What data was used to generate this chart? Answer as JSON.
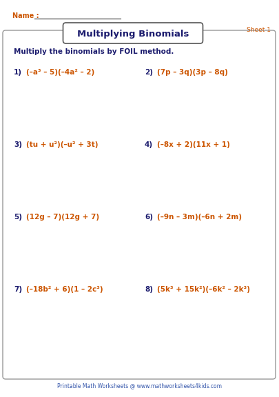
{
  "title": "Multiplying Binomials",
  "sheet": "Sheet 1",
  "name_label": "Name :",
  "instruction": "Multiply the binomials by FOIL method.",
  "problems": [
    {
      "num": "1)",
      "expr": "(–a³ – 5)(–4a² – 2)",
      "col": 0,
      "row": 0
    },
    {
      "num": "2)",
      "expr": "(7p – 3q)(3p – 8q)",
      "col": 1,
      "row": 0
    },
    {
      "num": "3)",
      "expr": "(tu + u²)(–u² + 3t)",
      "col": 0,
      "row": 1
    },
    {
      "num": "4)",
      "expr": "(–8x + 2)(11x + 1)",
      "col": 1,
      "row": 1
    },
    {
      "num": "5)",
      "expr": "(12g – 7)(12g + 7)",
      "col": 0,
      "row": 2
    },
    {
      "num": "6)",
      "expr": "(–9n – 3m)(–6n + 2m)",
      "col": 1,
      "row": 2
    },
    {
      "num": "7)",
      "expr": "(–18b² + 6)(1 – 2c³)",
      "col": 0,
      "row": 3
    },
    {
      "num": "8)",
      "expr": "(5k³ + 15k²)(–6k² – 2k³)",
      "col": 1,
      "row": 3
    }
  ],
  "title_color": "#1c1c6e",
  "problem_number_color": "#1c1c6e",
  "problem_expr_color": "#cc5500",
  "instruction_color": "#1c1c6e",
  "name_color": "#cc5500",
  "sheet_color": "#cc5500",
  "footer_color": "#3355aa",
  "footer_text": "Printable Math Worksheets @ www.mathworksheets4kids.com",
  "bg_color": "#ffffff",
  "box_edge_color": "#999999",
  "title_box_edge": "#555555"
}
